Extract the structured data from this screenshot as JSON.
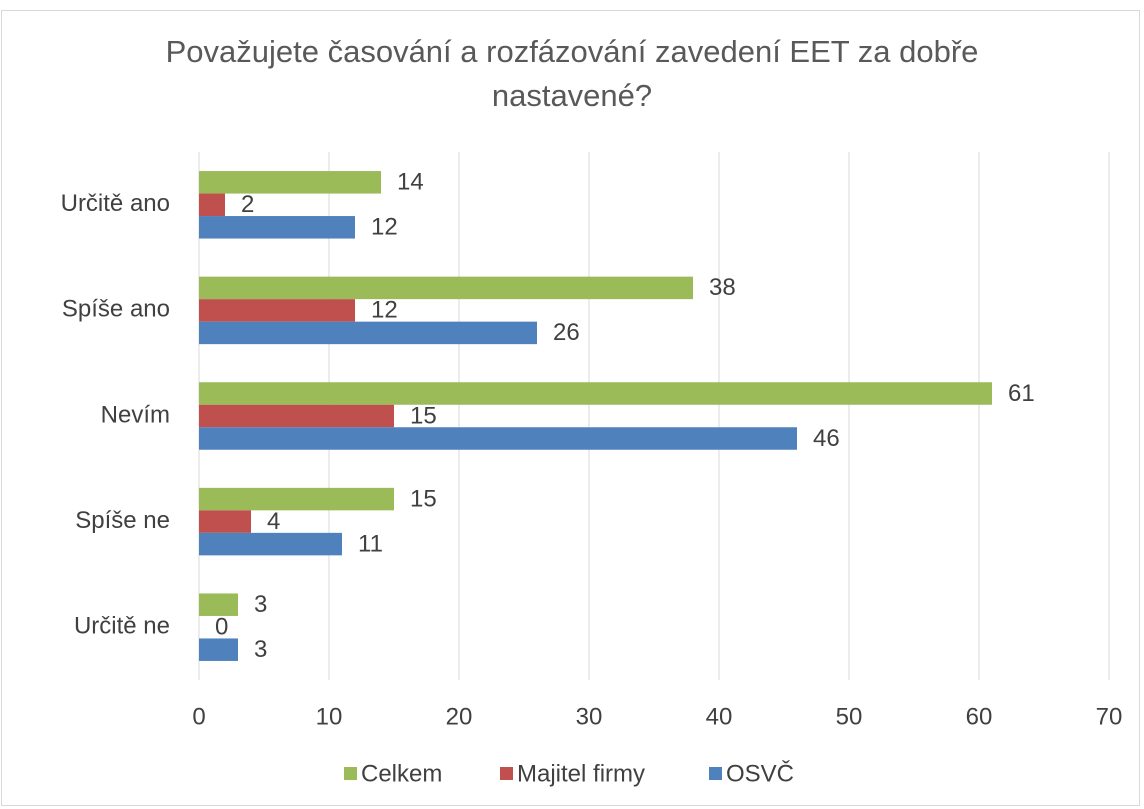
{
  "chart_data": {
    "type": "barh",
    "title": "Považujete časování a rozfázování zavedení EET za dobře nastavené?",
    "categories": [
      "Určitě ano",
      "Spíše ano",
      "Nevím",
      "Spíše ne",
      "Určitě ne"
    ],
    "series": [
      {
        "name": "Celkem",
        "color": "#9bbb59",
        "values": [
          14,
          38,
          61,
          15,
          3
        ]
      },
      {
        "name": "Majitel firmy",
        "color": "#c0504d",
        "values": [
          2,
          12,
          15,
          4,
          0
        ]
      },
      {
        "name": "OSVČ",
        "color": "#4f81bd",
        "values": [
          12,
          26,
          46,
          11,
          3
        ]
      }
    ],
    "xlim": [
      0,
      70
    ],
    "xticks": [
      0,
      10,
      20,
      30,
      40,
      50,
      60,
      70
    ],
    "grid": true,
    "legend": "bottom"
  }
}
